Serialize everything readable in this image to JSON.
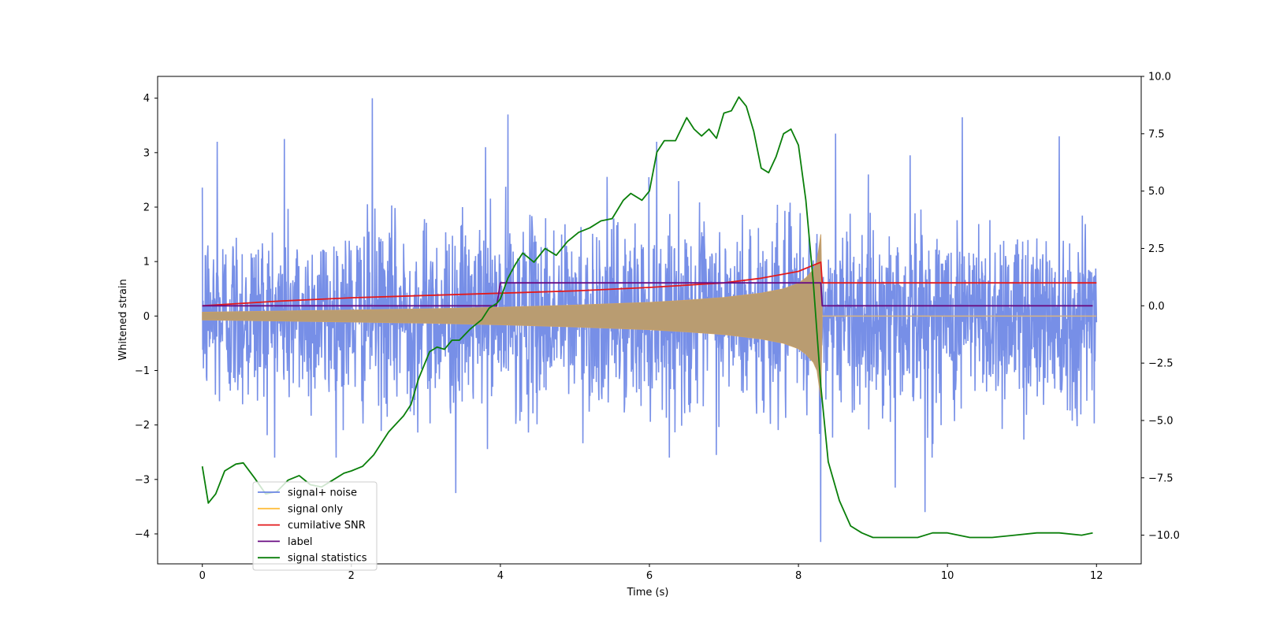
{
  "chart_data": {
    "type": "line",
    "title": "",
    "xlabel": "Time (s)",
    "ylabel_left": "Whitened strain",
    "ylabel_right": "",
    "xlim": [
      -0.6,
      12.6
    ],
    "ylim_left": [
      -4.55,
      4.4
    ],
    "ylim_right": [
      -11.25,
      10.0
    ],
    "x_ticks": [
      0,
      2,
      4,
      6,
      8,
      10,
      12
    ],
    "x_tick_labels": [
      "0",
      "2",
      "4",
      "6",
      "8",
      "10",
      "12"
    ],
    "y_left_ticks": [
      -4,
      -3,
      -2,
      -1,
      0,
      1,
      2,
      3,
      4
    ],
    "y_left_tick_labels": [
      "−4",
      "−3",
      "−2",
      "−1",
      "0",
      "1",
      "2",
      "3",
      "4"
    ],
    "y_right_ticks": [
      -10,
      -7.5,
      -5,
      -2.5,
      0,
      2.5,
      5,
      7.5,
      10
    ],
    "y_right_tick_labels": [
      "−10.0",
      "−7.5",
      "−5.0",
      "−2.5",
      "0.0",
      "2.5",
      "5.0",
      "7.5",
      "10.0"
    ],
    "legend_position": "lower-left",
    "series": [
      {
        "name": "signal+ noise",
        "axis": "left",
        "color": "#6b86e5",
        "style": "dense noise band",
        "x_range": [
          0,
          12
        ],
        "typical_band": [
          -1.8,
          1.9
        ],
        "peak_spikes": [
          {
            "x": 0.2,
            "y": 3.2
          },
          {
            "x": 1.1,
            "y": 3.25
          },
          {
            "x": 2.28,
            "y": 4.0
          },
          {
            "x": 3.8,
            "y": 3.1
          },
          {
            "x": 4.1,
            "y": 3.7
          },
          {
            "x": 6.1,
            "y": 3.2
          },
          {
            "x": 8.5,
            "y": 3.35
          },
          {
            "x": 9.5,
            "y": 2.95
          },
          {
            "x": 10.2,
            "y": 3.65
          },
          {
            "x": 11.5,
            "y": 3.3
          },
          {
            "x": 4.1,
            "y": -3.35
          },
          {
            "x": 3.4,
            "y": -3.25
          },
          {
            "x": 8.3,
            "y": -4.15
          },
          {
            "x": 9.7,
            "y": -3.6
          },
          {
            "x": 9.3,
            "y": -3.15
          }
        ]
      },
      {
        "name": "signal only",
        "axis": "left",
        "color": "#ffbf40",
        "style": "chirp envelope",
        "envelope_x": [
          0,
          1,
          2,
          3,
          4,
          5,
          6,
          6.5,
          7,
          7.5,
          7.8,
          8.0,
          8.1,
          8.2,
          8.25,
          8.3,
          8.32
        ],
        "envelope_half_amplitude": [
          0.07,
          0.09,
          0.11,
          0.13,
          0.16,
          0.2,
          0.25,
          0.29,
          0.34,
          0.42,
          0.5,
          0.6,
          0.7,
          0.85,
          1.0,
          1.5,
          0.0
        ],
        "after_merger_value": 0.0
      },
      {
        "name": "cumilative SNR",
        "axis": "right",
        "color": "#e31a1c",
        "x": [
          0,
          1,
          2,
          3,
          4,
          5,
          6,
          7,
          7.5,
          8.0,
          8.3,
          8.32,
          12
        ],
        "y": [
          0.0,
          0.2,
          0.35,
          0.45,
          0.55,
          0.65,
          0.8,
          1.0,
          1.2,
          1.5,
          1.9,
          1.0,
          1.0
        ]
      },
      {
        "name": "label",
        "axis": "right",
        "color": "#6a0d83",
        "x": [
          0,
          3.95,
          4.0,
          8.3,
          8.32,
          11.95
        ],
        "y": [
          0.0,
          0.0,
          1.0,
          1.0,
          0.0,
          0.0
        ]
      },
      {
        "name": "signal statistics",
        "axis": "right",
        "color": "#0a7f0a",
        "x": [
          0,
          0.08,
          0.18,
          0.3,
          0.45,
          0.55,
          0.7,
          0.85,
          1.0,
          1.15,
          1.3,
          1.45,
          1.6,
          1.75,
          1.9,
          2.0,
          2.15,
          2.3,
          2.5,
          2.7,
          2.8,
          2.9,
          3.05,
          3.15,
          3.25,
          3.35,
          3.45,
          3.6,
          3.75,
          3.85,
          3.95,
          4.0,
          4.1,
          4.2,
          4.3,
          4.45,
          4.6,
          4.75,
          4.9,
          5.05,
          5.2,
          5.35,
          5.5,
          5.65,
          5.75,
          5.9,
          6.0,
          6.1,
          6.2,
          6.35,
          6.5,
          6.6,
          6.7,
          6.8,
          6.9,
          7.0,
          7.1,
          7.2,
          7.3,
          7.4,
          7.5,
          7.6,
          7.7,
          7.8,
          7.9,
          8.0,
          8.1,
          8.2,
          8.3,
          8.4,
          8.55,
          8.7,
          8.85,
          9.0,
          9.3,
          9.6,
          9.8,
          10.0,
          10.3,
          10.6,
          10.9,
          11.2,
          11.5,
          11.8,
          11.95
        ],
        "y": [
          -7.0,
          -8.6,
          -8.2,
          -7.2,
          -6.9,
          -6.85,
          -7.5,
          -8.2,
          -8.1,
          -7.6,
          -7.4,
          -7.8,
          -7.9,
          -7.6,
          -7.3,
          -7.2,
          -7.0,
          -6.5,
          -5.5,
          -4.8,
          -4.3,
          -3.2,
          -2.0,
          -1.8,
          -1.9,
          -1.5,
          -1.5,
          -1.0,
          -0.6,
          -0.1,
          0.1,
          0.3,
          1.2,
          1.8,
          2.3,
          1.9,
          2.5,
          2.2,
          2.8,
          3.2,
          3.4,
          3.7,
          3.8,
          4.6,
          4.9,
          4.6,
          5.0,
          6.7,
          7.2,
          7.2,
          8.2,
          7.7,
          7.4,
          7.7,
          7.3,
          8.4,
          8.5,
          9.1,
          8.7,
          7.6,
          6.0,
          5.8,
          6.5,
          7.5,
          7.7,
          7.0,
          4.6,
          1.0,
          -3.5,
          -6.8,
          -8.5,
          -9.6,
          -9.9,
          -10.1,
          -10.1,
          -10.1,
          -9.9,
          -9.9,
          -10.1,
          -10.1,
          -10.0,
          -9.9,
          -9.9,
          -10.0,
          -9.9
        ]
      }
    ]
  }
}
